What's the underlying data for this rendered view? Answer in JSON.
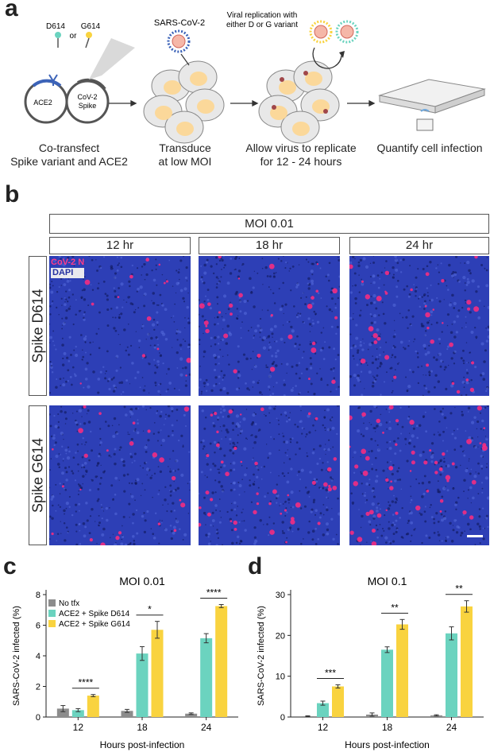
{
  "panel_a": {
    "label": "a",
    "plasmid_ace2": "ACE2",
    "plasmid_spike": [
      "CoV-2",
      "Spike"
    ],
    "variant_d": "D614",
    "variant_or": "or",
    "variant_g": "G614",
    "virus_label": "SARS-CoV-2",
    "replication_note": [
      "Viral replication with",
      "either D or G variant"
    ],
    "step1": [
      "Co-transfect",
      "Spike variant and ACE2"
    ],
    "step2": [
      "Transduce",
      "at low MOI"
    ],
    "step3": [
      "Allow virus to replicate",
      "for 12 - 24 hours"
    ],
    "step4": "Quantify cell infection"
  },
  "panel_b": {
    "label": "b",
    "moi_header": "MOI 0.01",
    "timepoints": [
      "12 hr",
      "18 hr",
      "24 hr"
    ],
    "rows": [
      "Spike D614",
      "Spike G614"
    ],
    "stain_n": "CoV-2 N",
    "stain_dapi": "DAPI"
  },
  "colors": {
    "no_tfx": "#8c8c8c",
    "d614": "#6bd3bf",
    "g614": "#f9d33f",
    "dapi": "#2d3fb6",
    "cov_n": "#ff2b7f"
  },
  "chart_data": [
    {
      "panel": "c",
      "type": "bar",
      "title": "MOI 0.01",
      "xlabel": "Hours post-infection",
      "ylabel": "SARS-CoV-2 infected (%)",
      "categories": [
        "12",
        "18",
        "24"
      ],
      "ylim": [
        0,
        8
      ],
      "yticks": [
        0,
        2,
        4,
        6,
        8
      ],
      "legend": "top-left",
      "series": [
        {
          "name": "No tfx",
          "values": [
            0.55,
            0.4,
            0.22
          ],
          "errors": [
            0.2,
            0.1,
            0.05
          ]
        },
        {
          "name": "ACE2 + Spike D614",
          "values": [
            0.45,
            4.15,
            5.15
          ],
          "errors": [
            0.1,
            0.45,
            0.3
          ]
        },
        {
          "name": "ACE2 + Spike G614",
          "values": [
            1.4,
            5.7,
            7.25
          ],
          "errors": [
            0.07,
            0.55,
            0.1
          ]
        }
      ],
      "significance": [
        "****",
        "*",
        "****"
      ]
    },
    {
      "panel": "d",
      "type": "bar",
      "title": "MOI 0.1",
      "xlabel": "Hours post-infection",
      "ylabel": "SARS-CoV-2 infected (%)",
      "categories": [
        "12",
        "18",
        "24"
      ],
      "ylim": [
        0,
        30
      ],
      "yticks": [
        0,
        10,
        20,
        30
      ],
      "series": [
        {
          "name": "No tfx",
          "values": [
            0.2,
            0.6,
            0.4
          ],
          "errors": [
            0.1,
            0.4,
            0.15
          ]
        },
        {
          "name": "ACE2 + Spike D614",
          "values": [
            3.4,
            16.5,
            20.5
          ],
          "errors": [
            0.5,
            0.7,
            1.6
          ]
        },
        {
          "name": "ACE2 + Spike G614",
          "values": [
            7.5,
            22.7,
            27.1
          ],
          "errors": [
            0.4,
            1.2,
            1.4
          ]
        }
      ],
      "significance": [
        "***",
        "**",
        "**"
      ]
    }
  ],
  "chart_labels": [
    "c",
    "d"
  ]
}
